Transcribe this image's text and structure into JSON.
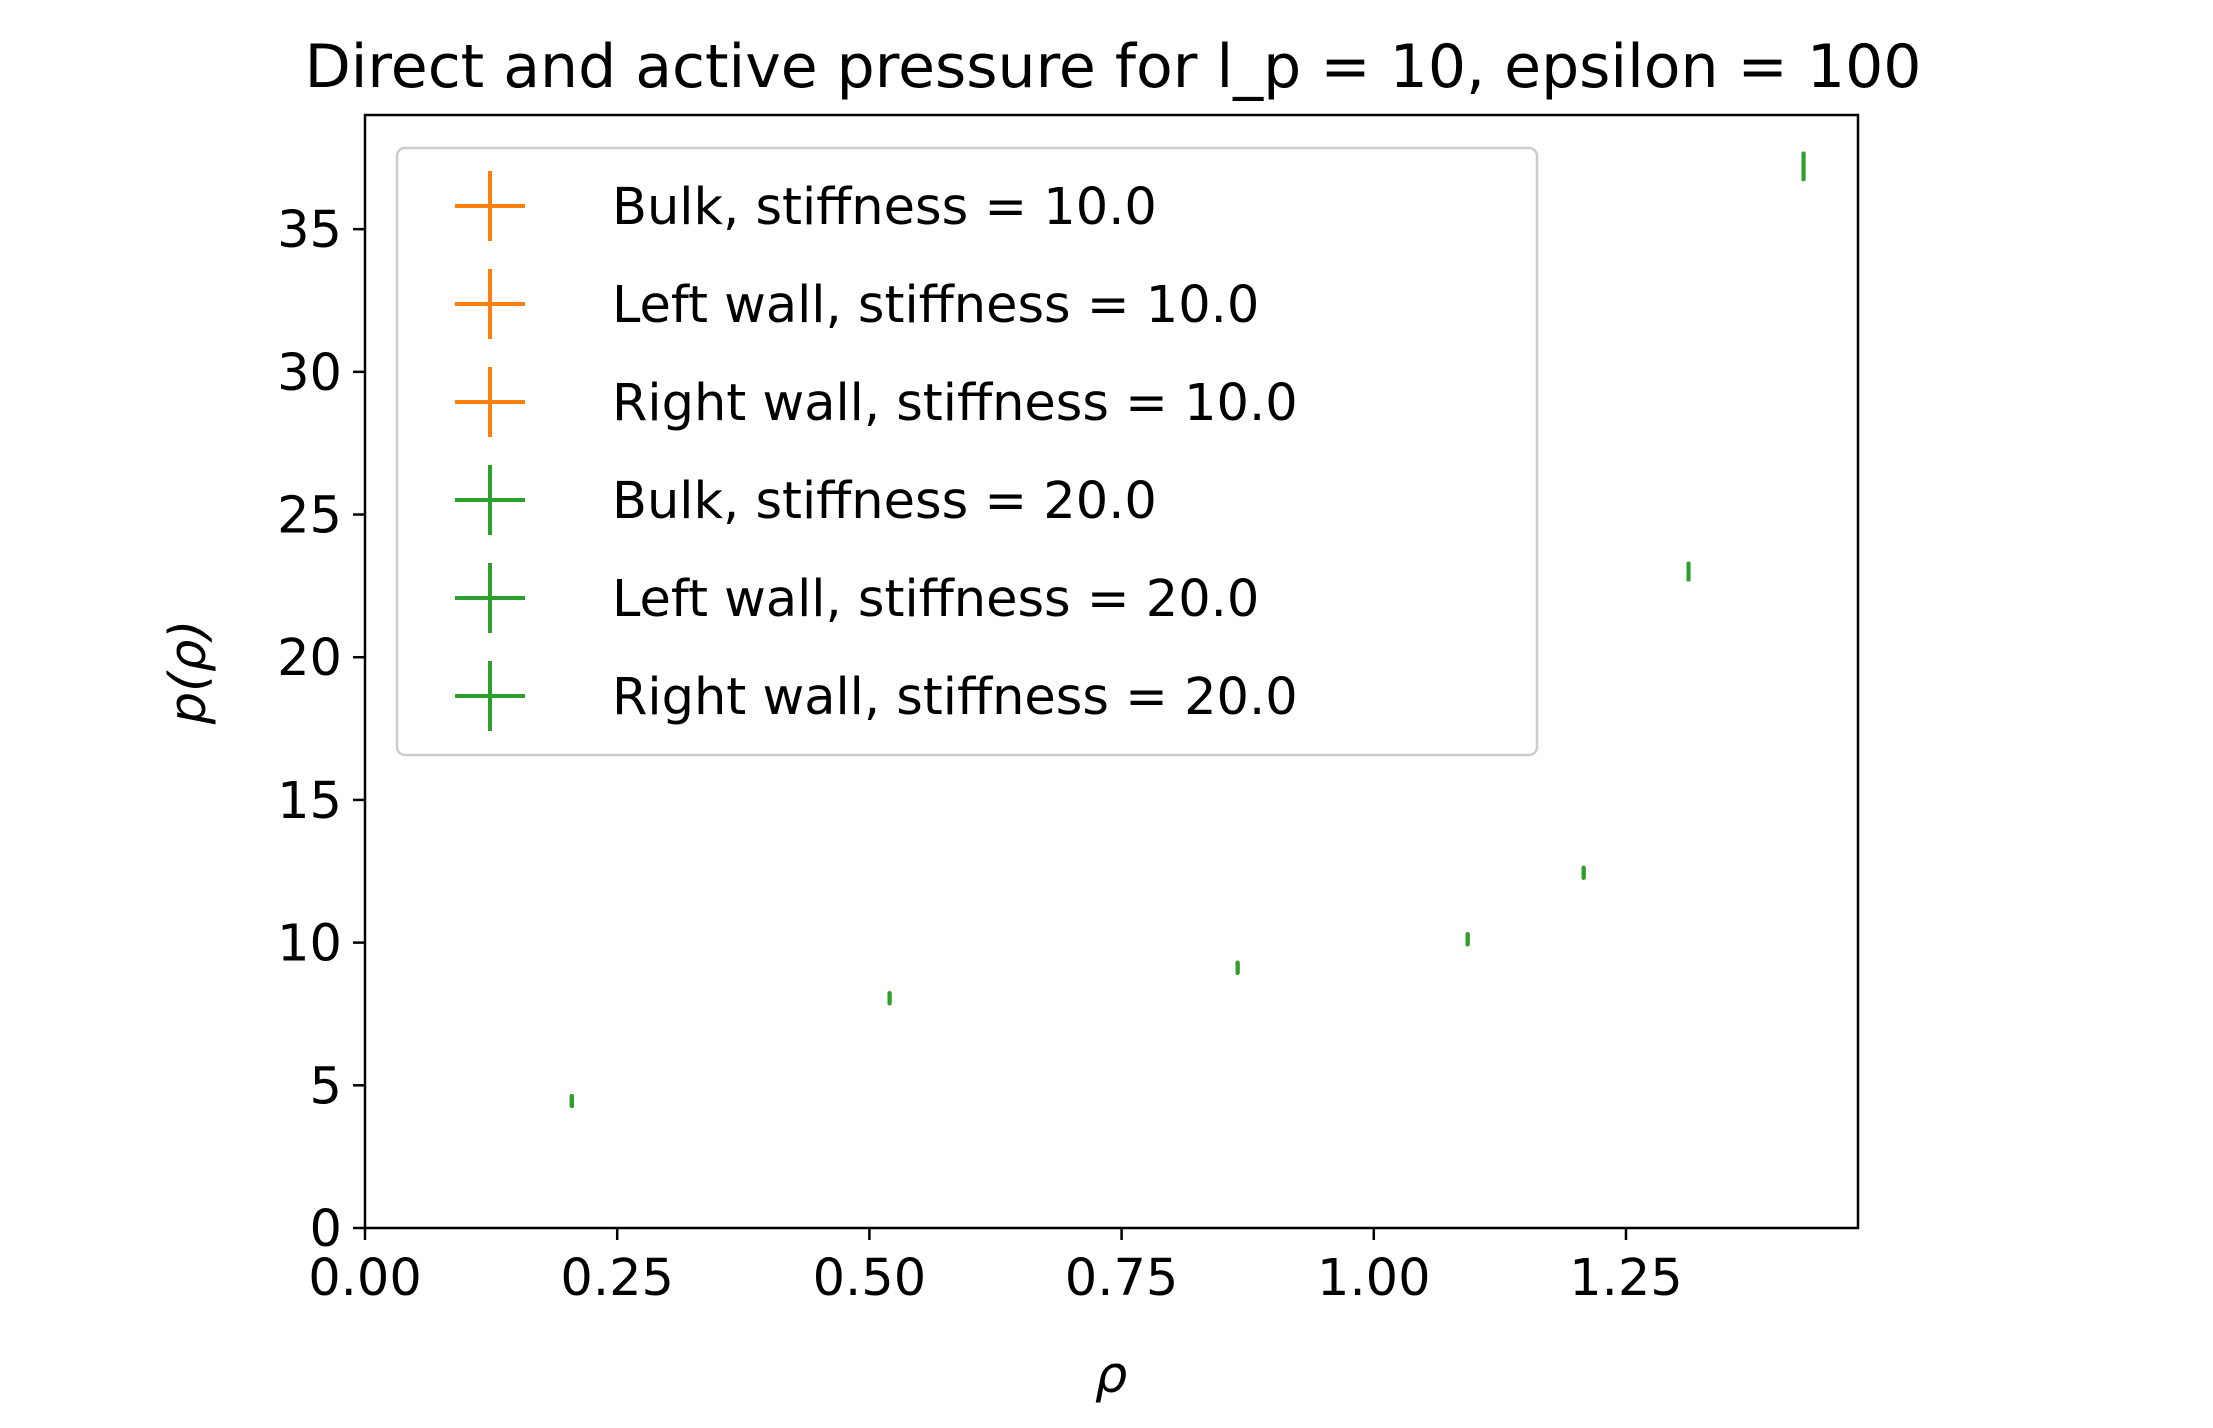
{
  "chart_data": {
    "type": "scatter",
    "title": "Direct and active pressure for l_p = 10, epsilon = 100",
    "xlabel": "ρ",
    "ylabel": "p(ρ)",
    "xlim": [
      0.0,
      1.48
    ],
    "ylim": [
      0,
      39
    ],
    "xticks": [
      0.0,
      0.25,
      0.5,
      0.75,
      1.0,
      1.25
    ],
    "xtick_labels": [
      "0.00",
      "0.25",
      "0.50",
      "0.75",
      "1.00",
      "1.25"
    ],
    "yticks": [
      0,
      5,
      10,
      15,
      20,
      25,
      30,
      35
    ],
    "ytick_labels": [
      "0",
      "5",
      "10",
      "15",
      "20",
      "25",
      "30",
      "35"
    ],
    "grid": false,
    "legend_position": "upper left",
    "x": [
      0.205,
      0.52,
      0.865,
      1.093,
      1.208,
      1.312,
      1.426
    ],
    "series": [
      {
        "name": "Bulk, stiffness = 10.0",
        "color": "#ff7f0e",
        "marker": "plus",
        "values": [
          4.45,
          8.05,
          9.12,
          10.12,
          12.45,
          23.0,
          37.2
        ]
      },
      {
        "name": "Left wall, stiffness = 10.0",
        "color": "#ff7f0e",
        "marker": "plus",
        "values": [
          4.45,
          8.05,
          9.12,
          10.12,
          12.45,
          23.0,
          37.2
        ]
      },
      {
        "name": "Right wall, stiffness = 10.0",
        "color": "#ff7f0e",
        "marker": "plus",
        "values": [
          4.45,
          8.05,
          9.12,
          10.12,
          12.45,
          23.0,
          37.2
        ]
      },
      {
        "name": "Bulk, stiffness = 20.0",
        "color": "#2ca02c",
        "marker": "plus",
        "values": [
          4.45,
          8.05,
          9.12,
          10.12,
          12.45,
          23.0,
          37.2
        ]
      },
      {
        "name": "Left wall, stiffness = 20.0",
        "color": "#2ca02c",
        "marker": "plus",
        "values": [
          4.45,
          8.05,
          9.12,
          10.12,
          12.45,
          23.0,
          37.2
        ]
      },
      {
        "name": "Right wall, stiffness = 20.0",
        "color": "#2ca02c",
        "marker": "plus",
        "values": [
          4.45,
          8.05,
          9.12,
          10.12,
          12.45,
          23.0,
          37.2
        ]
      }
    ]
  }
}
